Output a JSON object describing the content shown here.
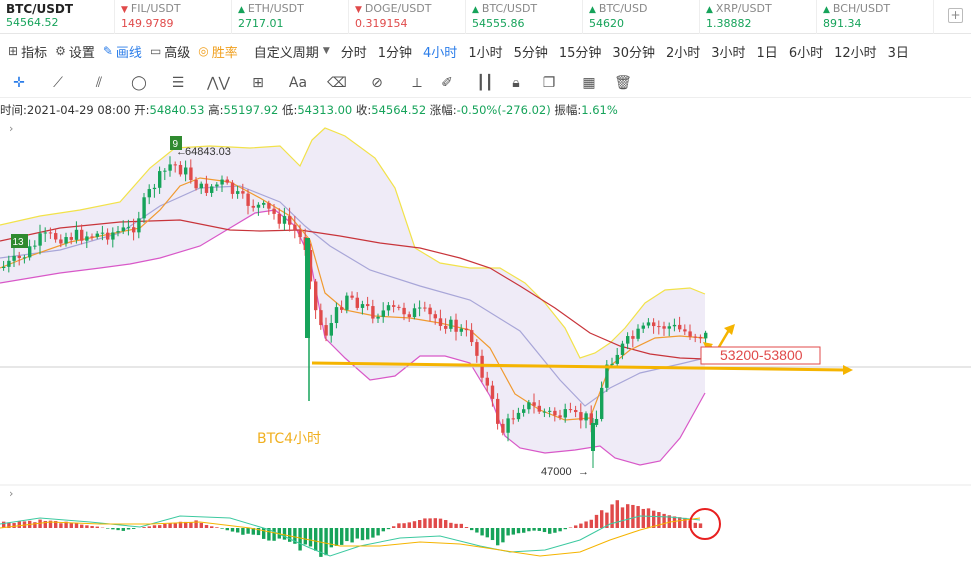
{
  "tickers": [
    {
      "symbol": "BTC/USDT",
      "price": "54564.52",
      "dir": "up",
      "main": true
    },
    {
      "symbol": "FIL/USDT",
      "price": "149.9789",
      "dir": "down"
    },
    {
      "symbol": "ETH/USDT",
      "price": "2717.01",
      "dir": "up"
    },
    {
      "symbol": "DOGE/USDT",
      "price": "0.319154",
      "dir": "down"
    },
    {
      "symbol": "BTC/USDT",
      "price": "54555.86",
      "dir": "up"
    },
    {
      "symbol": "BTC/USD",
      "price": "54620",
      "dir": "up"
    },
    {
      "symbol": "XRP/USDT",
      "price": "1.38882",
      "dir": "up"
    },
    {
      "symbol": "BCH/USDT",
      "price": "891.34",
      "dir": "up"
    }
  ],
  "toolbar": {
    "indicators": "指标",
    "settings": "设置",
    "draw": "画线",
    "advanced": "高级",
    "winrate": "胜率",
    "custom_period": "自定义周期",
    "periods": [
      "分时",
      "1分钟",
      "4小时",
      "1小时",
      "5分钟",
      "15分钟",
      "30分钟",
      "2小时",
      "3小时",
      "1日",
      "6小时",
      "12小时",
      "3日"
    ],
    "active_period": "4小时"
  },
  "ohlc": {
    "time_label": "时间:",
    "time": "2021-04-29 08:00",
    "open_label": "开:",
    "open": "54840.53",
    "high_label": "高:",
    "high": "55197.92",
    "low_label": "低:",
    "low": "54313.00",
    "close_label": "收:",
    "close": "54564.52",
    "change_label": "涨幅:",
    "change": "-0.50%(-276.02)",
    "amp_label": "振幅:",
    "amp": "1.61%"
  },
  "annotations": {
    "high_marker": "64843.03",
    "low_marker": "47000",
    "zone_label": "53200-53800",
    "chart_caption": "BTC4小时",
    "badge_9": "9",
    "badge_13": "13"
  },
  "colors": {
    "up": "#16a35a",
    "down": "#e04a4a",
    "accent": "#2b7de9",
    "orange": "#f5b400",
    "boll_upper": "#f2e24a",
    "boll_lower": "#d858c8",
    "boll_fill": "#ece8f6",
    "ma_red": "#c8343a",
    "ma_orange": "#f09a30",
    "ma_purple": "#a8a6d8"
  }
}
